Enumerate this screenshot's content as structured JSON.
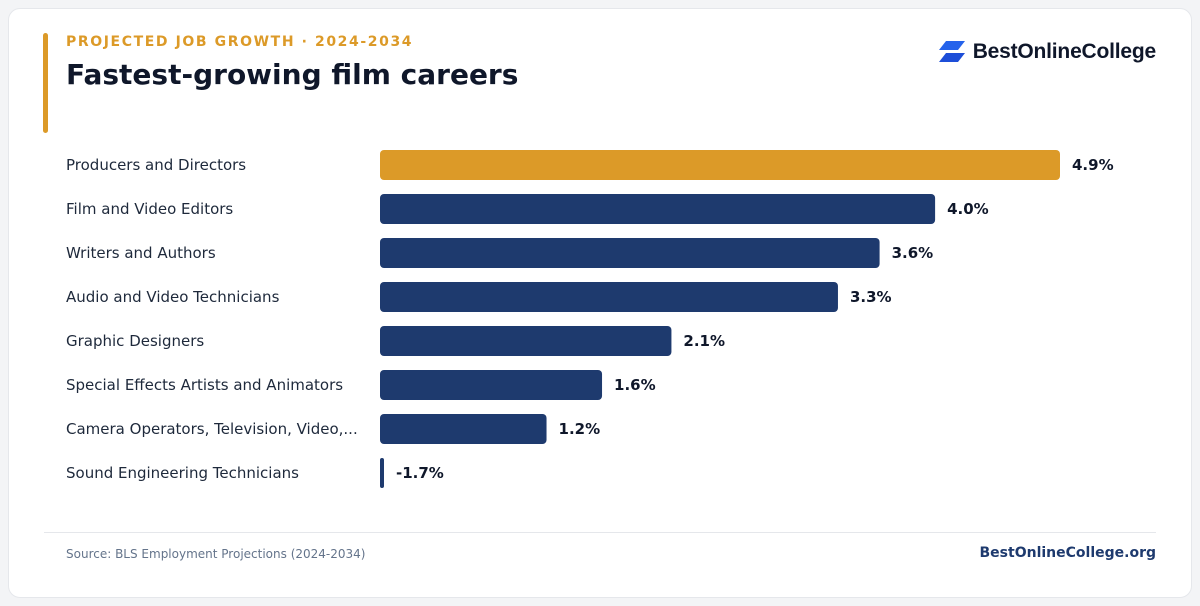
{
  "header": {
    "eyebrow": "PROJECTED JOB GROWTH · 2024-2034",
    "title": "Fastest-growing film careers"
  },
  "brand": {
    "name": "BestOnlineCollege",
    "icon": "brand-logo-icon",
    "icon_color": "#2563eb"
  },
  "colors": {
    "highlight": "#dc9a28",
    "bar": "#1e3a6e"
  },
  "chart_data": {
    "type": "bar",
    "orientation": "horizontal",
    "categories": [
      "Producers and Directors",
      "Film and Video Editors",
      "Writers and Authors",
      "Audio and Video Technicians",
      "Graphic Designers",
      "Special Effects Artists and Animators",
      "Camera Operators, Television, Video,...",
      "Sound Engineering Technicians"
    ],
    "values": [
      4.9,
      4.0,
      3.6,
      3.3,
      2.1,
      1.6,
      1.2,
      -1.7
    ],
    "value_labels": [
      "4.9%",
      "4.0%",
      "3.6%",
      "3.3%",
      "2.1%",
      "1.6%",
      "1.2%",
      "-1.7%"
    ],
    "highlight_index": 0,
    "title": "Fastest-growing film careers",
    "xlabel": "",
    "ylabel": "",
    "xlim": [
      0,
      4.9
    ],
    "grid": false,
    "legend": "none"
  },
  "footer": {
    "source": "Source: BLS Employment Projections (2024-2034)",
    "link": "BestOnlineCollege.org"
  }
}
